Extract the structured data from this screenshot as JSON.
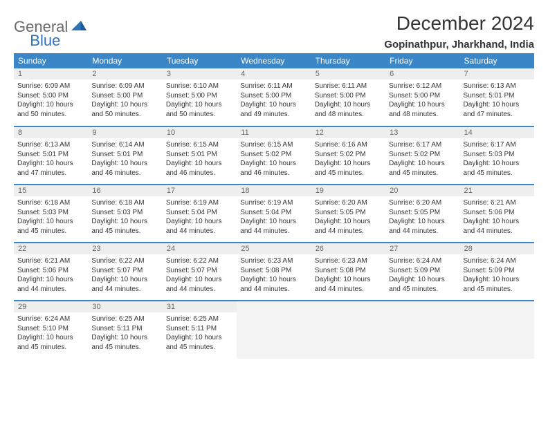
{
  "logo": {
    "text1": "General",
    "text2": "Blue"
  },
  "title": "December 2024",
  "location": "Gopinathpur, Jharkhand, India",
  "colors": {
    "header_bg": "#3b86c6",
    "header_text": "#ffffff",
    "daynum_bg": "#eeeeee",
    "daynum_text": "#666666",
    "border": "#3b86c6",
    "logo_gray": "#6a6a6a",
    "logo_blue": "#2d73b8"
  },
  "day_headers": [
    "Sunday",
    "Monday",
    "Tuesday",
    "Wednesday",
    "Thursday",
    "Friday",
    "Saturday"
  ],
  "weeks": [
    [
      {
        "n": "1",
        "sr": "6:09 AM",
        "ss": "5:00 PM",
        "dl": "10 hours and 50 minutes."
      },
      {
        "n": "2",
        "sr": "6:09 AM",
        "ss": "5:00 PM",
        "dl": "10 hours and 50 minutes."
      },
      {
        "n": "3",
        "sr": "6:10 AM",
        "ss": "5:00 PM",
        "dl": "10 hours and 50 minutes."
      },
      {
        "n": "4",
        "sr": "6:11 AM",
        "ss": "5:00 PM",
        "dl": "10 hours and 49 minutes."
      },
      {
        "n": "5",
        "sr": "6:11 AM",
        "ss": "5:00 PM",
        "dl": "10 hours and 48 minutes."
      },
      {
        "n": "6",
        "sr": "6:12 AM",
        "ss": "5:00 PM",
        "dl": "10 hours and 48 minutes."
      },
      {
        "n": "7",
        "sr": "6:13 AM",
        "ss": "5:01 PM",
        "dl": "10 hours and 47 minutes."
      }
    ],
    [
      {
        "n": "8",
        "sr": "6:13 AM",
        "ss": "5:01 PM",
        "dl": "10 hours and 47 minutes."
      },
      {
        "n": "9",
        "sr": "6:14 AM",
        "ss": "5:01 PM",
        "dl": "10 hours and 46 minutes."
      },
      {
        "n": "10",
        "sr": "6:15 AM",
        "ss": "5:01 PM",
        "dl": "10 hours and 46 minutes."
      },
      {
        "n": "11",
        "sr": "6:15 AM",
        "ss": "5:02 PM",
        "dl": "10 hours and 46 minutes."
      },
      {
        "n": "12",
        "sr": "6:16 AM",
        "ss": "5:02 PM",
        "dl": "10 hours and 45 minutes."
      },
      {
        "n": "13",
        "sr": "6:17 AM",
        "ss": "5:02 PM",
        "dl": "10 hours and 45 minutes."
      },
      {
        "n": "14",
        "sr": "6:17 AM",
        "ss": "5:03 PM",
        "dl": "10 hours and 45 minutes."
      }
    ],
    [
      {
        "n": "15",
        "sr": "6:18 AM",
        "ss": "5:03 PM",
        "dl": "10 hours and 45 minutes."
      },
      {
        "n": "16",
        "sr": "6:18 AM",
        "ss": "5:03 PM",
        "dl": "10 hours and 45 minutes."
      },
      {
        "n": "17",
        "sr": "6:19 AM",
        "ss": "5:04 PM",
        "dl": "10 hours and 44 minutes."
      },
      {
        "n": "18",
        "sr": "6:19 AM",
        "ss": "5:04 PM",
        "dl": "10 hours and 44 minutes."
      },
      {
        "n": "19",
        "sr": "6:20 AM",
        "ss": "5:05 PM",
        "dl": "10 hours and 44 minutes."
      },
      {
        "n": "20",
        "sr": "6:20 AM",
        "ss": "5:05 PM",
        "dl": "10 hours and 44 minutes."
      },
      {
        "n": "21",
        "sr": "6:21 AM",
        "ss": "5:06 PM",
        "dl": "10 hours and 44 minutes."
      }
    ],
    [
      {
        "n": "22",
        "sr": "6:21 AM",
        "ss": "5:06 PM",
        "dl": "10 hours and 44 minutes."
      },
      {
        "n": "23",
        "sr": "6:22 AM",
        "ss": "5:07 PM",
        "dl": "10 hours and 44 minutes."
      },
      {
        "n": "24",
        "sr": "6:22 AM",
        "ss": "5:07 PM",
        "dl": "10 hours and 44 minutes."
      },
      {
        "n": "25",
        "sr": "6:23 AM",
        "ss": "5:08 PM",
        "dl": "10 hours and 44 minutes."
      },
      {
        "n": "26",
        "sr": "6:23 AM",
        "ss": "5:08 PM",
        "dl": "10 hours and 44 minutes."
      },
      {
        "n": "27",
        "sr": "6:24 AM",
        "ss": "5:09 PM",
        "dl": "10 hours and 45 minutes."
      },
      {
        "n": "28",
        "sr": "6:24 AM",
        "ss": "5:09 PM",
        "dl": "10 hours and 45 minutes."
      }
    ],
    [
      {
        "n": "29",
        "sr": "6:24 AM",
        "ss": "5:10 PM",
        "dl": "10 hours and 45 minutes."
      },
      {
        "n": "30",
        "sr": "6:25 AM",
        "ss": "5:11 PM",
        "dl": "10 hours and 45 minutes."
      },
      {
        "n": "31",
        "sr": "6:25 AM",
        "ss": "5:11 PM",
        "dl": "10 hours and 45 minutes."
      },
      null,
      null,
      null,
      null
    ]
  ],
  "labels": {
    "sunrise": "Sunrise:",
    "sunset": "Sunset:",
    "daylight": "Daylight:"
  }
}
